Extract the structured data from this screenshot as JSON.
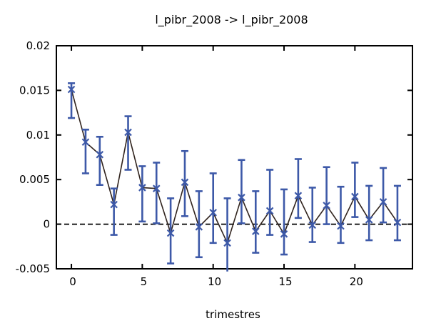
{
  "chart_data": {
    "type": "line",
    "title": "l_pibr_2008 -> l_pibr_2008",
    "xlabel": "trimestres",
    "ylabel": "",
    "xlim": [
      -1.06,
      24.06
    ],
    "ylim": [
      -0.005,
      0.02
    ],
    "x_ticks": [
      0,
      5,
      10,
      15,
      20
    ],
    "y_ticks": [
      {
        "v": -0.005,
        "label": "-0.005"
      },
      {
        "v": 0,
        "label": "0"
      },
      {
        "v": 0.005,
        "label": "0.005"
      },
      {
        "v": 0.01,
        "label": "0.01"
      },
      {
        "v": 0.015,
        "label": "0.015"
      },
      {
        "v": 0.02,
        "label": "0.02"
      }
    ],
    "grid": false,
    "legend": "none",
    "zero_line": true,
    "marker": "x",
    "colors": {
      "errorbar": "#3d59a8",
      "line": "#30231d",
      "axis": "#000000",
      "background": "#ffffff"
    },
    "series": [
      {
        "name": "l_pibr_2008 -> l_pibr_2008",
        "points": [
          {
            "x": 0,
            "y": 0.0151,
            "lo": 0.0119,
            "hi": 0.0158
          },
          {
            "x": 1,
            "y": 0.0092,
            "lo": 0.0057,
            "hi": 0.0106
          },
          {
            "x": 2,
            "y": 0.0078,
            "lo": 0.0044,
            "hi": 0.0098
          },
          {
            "x": 3,
            "y": 0.0022,
            "lo": -0.0012,
            "hi": 0.004
          },
          {
            "x": 4,
            "y": 0.0103,
            "lo": 0.0061,
            "hi": 0.0121
          },
          {
            "x": 5,
            "y": 0.0041,
            "lo": 0.0003,
            "hi": 0.0065
          },
          {
            "x": 6,
            "y": 0.004,
            "lo": 0.0001,
            "hi": 0.0069
          },
          {
            "x": 7,
            "y": -0.001,
            "lo": -0.0044,
            "hi": 0.0029
          },
          {
            "x": 8,
            "y": 0.0047,
            "lo": 0.0009,
            "hi": 0.0082
          },
          {
            "x": 9,
            "y": -0.0003,
            "lo": -0.0037,
            "hi": 0.0037
          },
          {
            "x": 10,
            "y": 0.0013,
            "lo": -0.0021,
            "hi": 0.0057
          },
          {
            "x": 11,
            "y": -0.0021,
            "lo": -0.0053,
            "hi": 0.0029
          },
          {
            "x": 12,
            "y": 0.003,
            "lo": 0.0001,
            "hi": 0.0072
          },
          {
            "x": 13,
            "y": -0.0008,
            "lo": -0.0032,
            "hi": 0.0037
          },
          {
            "x": 14,
            "y": 0.0015,
            "lo": -0.0012,
            "hi": 0.0061
          },
          {
            "x": 15,
            "y": -0.0011,
            "lo": -0.0034,
            "hi": 0.0039
          },
          {
            "x": 16,
            "y": 0.0032,
            "lo": 0.0007,
            "hi": 0.0073
          },
          {
            "x": 17,
            "y": -0.0001,
            "lo": -0.002,
            "hi": 0.0041
          },
          {
            "x": 18,
            "y": 0.0021,
            "lo": 0.0,
            "hi": 0.0064
          },
          {
            "x": 19,
            "y": -0.0002,
            "lo": -0.0021,
            "hi": 0.0042
          },
          {
            "x": 20,
            "y": 0.0031,
            "lo": 0.0008,
            "hi": 0.0069
          },
          {
            "x": 21,
            "y": 0.0005,
            "lo": -0.0018,
            "hi": 0.0043
          },
          {
            "x": 22,
            "y": 0.0025,
            "lo": 0.0002,
            "hi": 0.0063
          },
          {
            "x": 23,
            "y": 0.0002,
            "lo": -0.0018,
            "hi": 0.0043
          }
        ]
      }
    ]
  }
}
